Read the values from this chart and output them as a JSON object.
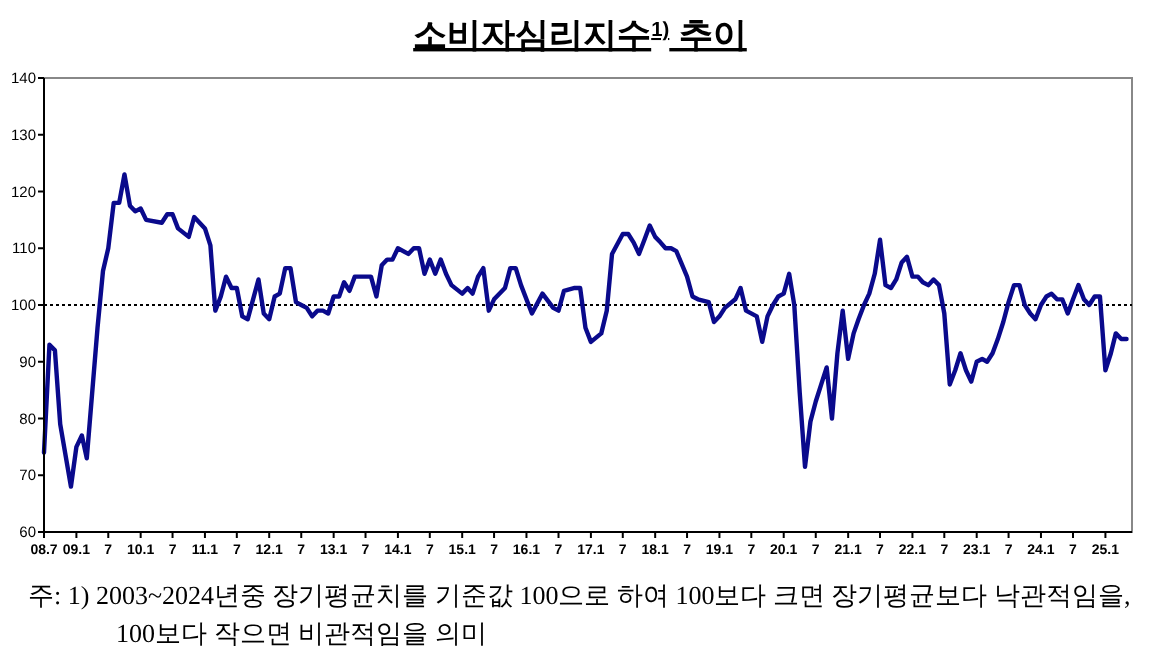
{
  "chart_data": {
    "type": "line",
    "title": "소비자심리지수$^{1)}$ 추이",
    "annotations": [
      "주: 1) 2003~2024년중 장기평균치를 기준값 100으로 하여 100보다 크면 장기평균보다 낙관적임을, 100보다 작으면 비관적임을 의미"
    ],
    "series": [
      {
        "color": "#0a0a8c",
        "x": [
          "2008-07",
          "2008-08",
          "2008-09",
          "2008-10",
          "2008-12",
          "2009-01",
          "2009-02",
          "2009-03",
          "2009-05",
          "2009-06",
          "2009-07",
          "2009-08",
          "2009-09",
          "2009-10",
          "2009-11",
          "2009-12",
          "2010-01",
          "2010-02",
          "2010-05",
          "2010-06",
          "2010-07",
          "2010-08",
          "2010-10",
          "2010-11",
          "2011-01",
          "2011-02",
          "2011-03",
          "2011-04",
          "2011-05",
          "2011-06",
          "2011-07",
          "2011-08",
          "2011-09",
          "2011-11",
          "2011-12",
          "2012-01",
          "2012-02",
          "2012-03",
          "2012-04",
          "2012-05",
          "2012-06",
          "2012-07",
          "2012-08",
          "2012-09",
          "2012-10",
          "2012-11",
          "2012-12",
          "2013-01",
          "2013-02",
          "2013-03",
          "2013-04",
          "2013-05",
          "2013-07",
          "2013-08",
          "2013-09",
          "2013-10",
          "2013-11",
          "2013-12",
          "2014-01",
          "2014-03",
          "2014-04",
          "2014-05",
          "2014-06",
          "2014-07",
          "2014-08",
          "2014-09",
          "2014-10",
          "2014-11",
          "2015-01",
          "2015-02",
          "2015-03",
          "2015-04",
          "2015-05",
          "2015-06",
          "2015-07",
          "2015-09",
          "2015-10",
          "2015-11",
          "2015-12",
          "2016-02",
          "2016-04",
          "2016-06",
          "2016-07",
          "2016-08",
          "2016-10",
          "2016-11",
          "2016-12",
          "2017-01",
          "2017-03",
          "2017-04",
          "2017-05",
          "2017-07",
          "2017-08",
          "2017-09",
          "2017-10",
          "2017-11",
          "2017-12",
          "2018-01",
          "2018-02",
          "2018-03",
          "2018-04",
          "2018-05",
          "2018-07",
          "2018-08",
          "2018-09",
          "2018-11",
          "2018-12",
          "2019-01",
          "2019-02",
          "2019-04",
          "2019-05",
          "2019-06",
          "2019-08",
          "2019-09",
          "2019-10",
          "2019-11",
          "2019-12",
          "2020-01",
          "2020-02",
          "2020-03",
          "2020-04",
          "2020-05",
          "2020-06",
          "2020-07",
          "2020-08",
          "2020-09",
          "2020-10",
          "2020-11",
          "2020-12",
          "2021-01",
          "2021-02",
          "2021-03",
          "2021-04",
          "2021-05",
          "2021-06",
          "2021-07",
          "2021-08",
          "2021-09",
          "2021-10",
          "2021-11",
          "2021-12",
          "2022-01",
          "2022-02",
          "2022-03",
          "2022-04",
          "2022-05",
          "2022-06",
          "2022-07",
          "2022-08",
          "2022-09",
          "2022-10",
          "2022-11",
          "2022-12",
          "2023-01",
          "2023-02",
          "2023-03",
          "2023-04",
          "2023-05",
          "2023-06",
          "2023-07",
          "2023-08",
          "2023-09",
          "2023-10",
          "2023-11",
          "2023-12",
          "2024-01",
          "2024-02",
          "2024-03",
          "2024-04",
          "2024-05",
          "2024-06",
          "2024-07",
          "2024-08",
          "2024-09",
          "2024-10",
          "2024-11",
          "2024-12",
          "2025-01",
          "2025-02",
          "2025-03",
          "2025-04",
          "2025-05"
        ],
        "values": [
          74,
          93,
          92,
          79,
          68,
          75,
          77,
          73,
          96,
          106,
          110,
          118,
          118,
          123,
          117.5,
          116.5,
          117,
          115,
          114.5,
          116,
          116,
          113.5,
          112,
          115.5,
          113.5,
          110.5,
          99,
          101.5,
          105,
          103,
          103,
          98,
          97.5,
          104.5,
          98.5,
          97.5,
          101.5,
          102,
          106.5,
          106.5,
          100.5,
          100,
          99.5,
          98,
          99,
          99,
          98.5,
          101.5,
          101.5,
          104,
          102.5,
          105,
          105,
          105,
          101.5,
          107,
          108,
          108,
          110,
          109,
          110,
          110,
          105.5,
          108,
          105.5,
          108,
          105.5,
          103.5,
          102,
          103,
          102,
          105,
          106.5,
          99,
          101,
          103,
          106.5,
          106.5,
          103.5,
          98.5,
          102,
          99.5,
          99,
          102.5,
          103,
          103,
          96,
          93.5,
          95,
          99,
          109,
          112.5,
          112.5,
          111,
          109,
          111.5,
          114,
          112,
          111,
          110,
          110,
          109.5,
          105,
          101.5,
          101,
          100.5,
          97,
          98,
          99.5,
          101,
          103,
          99,
          98,
          93.5,
          98,
          100,
          101.5,
          102,
          105.5,
          100,
          84.5,
          71.5,
          79.5,
          83,
          86,
          89,
          80,
          91.5,
          99,
          90.5,
          95,
          97.5,
          100,
          102,
          105.5,
          111.5,
          103.5,
          103,
          104.5,
          107.5,
          108.5,
          105,
          105,
          104,
          103.5,
          104.5,
          103.5,
          98.5,
          86,
          88.5,
          91.5,
          88.5,
          86.5,
          90,
          90.5,
          90,
          91.5,
          94,
          97,
          100.5,
          103.5,
          103.5,
          100,
          98.5,
          97.5,
          100,
          101.5,
          102,
          101,
          101,
          98.5,
          101,
          103.5,
          101,
          100,
          101.5,
          101.5,
          88.5,
          91.5,
          95,
          94,
          94
        ]
      }
    ],
    "xlim": [
      "2008-07",
      "2025-06"
    ],
    "xticks": [
      {
        "value": "2008-07",
        "label": "08.7"
      },
      {
        "value": "2009-01",
        "label": "09.1"
      },
      {
        "value": "2009-07",
        "label": "7"
      },
      {
        "value": "2010-01",
        "label": "10.1"
      },
      {
        "value": "2010-07",
        "label": "7"
      },
      {
        "value": "2011-01",
        "label": "11.1"
      },
      {
        "value": "2011-07",
        "label": "7"
      },
      {
        "value": "2012-01",
        "label": "12.1"
      },
      {
        "value": "2012-07",
        "label": "7"
      },
      {
        "value": "2013-01",
        "label": "13.1"
      },
      {
        "value": "2013-07",
        "label": "7"
      },
      {
        "value": "2014-01",
        "label": "14.1"
      },
      {
        "value": "2014-07",
        "label": "7"
      },
      {
        "value": "2015-01",
        "label": "15.1"
      },
      {
        "value": "2015-07",
        "label": "7"
      },
      {
        "value": "2016-01",
        "label": "16.1"
      },
      {
        "value": "2016-07",
        "label": "7"
      },
      {
        "value": "2017-01",
        "label": "17.1"
      },
      {
        "value": "2017-07",
        "label": "7"
      },
      {
        "value": "2018-01",
        "label": "18.1"
      },
      {
        "value": "2018-07",
        "label": "7"
      },
      {
        "value": "2019-01",
        "label": "19.1"
      },
      {
        "value": "2019-07",
        "label": "7"
      },
      {
        "value": "2020-01",
        "label": "20.1"
      },
      {
        "value": "2020-07",
        "label": "7"
      },
      {
        "value": "2021-01",
        "label": "21.1"
      },
      {
        "value": "2021-07",
        "label": "7"
      },
      {
        "value": "2022-01",
        "label": "22.1"
      },
      {
        "value": "2022-07",
        "label": "7"
      },
      {
        "value": "2023-01",
        "label": "23.1"
      },
      {
        "value": "2023-07",
        "label": "7"
      },
      {
        "value": "2024-01",
        "label": "24.1"
      },
      {
        "value": "2024-07",
        "label": "7"
      },
      {
        "value": "2025-01",
        "label": "25.1"
      }
    ],
    "ylim": [
      60,
      140
    ],
    "yticks": [
      60,
      70,
      80,
      90,
      100,
      110,
      120,
      130,
      140
    ],
    "ref_lines": [
      {
        "axis": "y",
        "value": 100,
        "color": "#000000",
        "line_style": "dotted"
      }
    ],
    "grid": false,
    "marker": "none",
    "line_style": "solid"
  }
}
